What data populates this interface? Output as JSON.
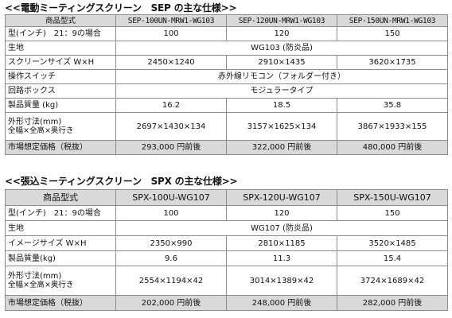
{
  "sep": {
    "title": "<<電動ミーティングスクリーン　SEP の主な仕様>>",
    "rows": {
      "model": {
        "label": "商品型式",
        "values": [
          "SEP-100UN-MRW1-WG103",
          "SEP-120UN-MRW1-WG103",
          "SEP-150UN-MRW1-WG103"
        ]
      },
      "inch": {
        "label": "型(インチ)　21：9の場合",
        "values": [
          "100",
          "120",
          "150"
        ]
      },
      "fabric": {
        "label": "生地",
        "value": "WG103 (防炎品)"
      },
      "screen_size": {
        "label": "スクリーンサイズ W×H",
        "values": [
          "2450×1240",
          "2910×1435",
          "3620×1735"
        ]
      },
      "switch": {
        "label": "操作スイッチ",
        "value": "赤外線リモコン（フォルダー付き）"
      },
      "circuit_box": {
        "label": "回路ボックス",
        "value": "モジュラータイプ"
      },
      "weight": {
        "label": "製品質量 (kg)",
        "values": [
          "16.2",
          "18.5",
          "35.8"
        ]
      },
      "dimensions": {
        "label": "外形寸法(mm)",
        "sublabel": "全幅×全高×奥行き",
        "values": [
          "2697×1430×134",
          "3157×1625×134",
          "3867×1933×155"
        ]
      },
      "price": {
        "label": "市場想定価格（税抜）",
        "values": [
          "293,000 円前後",
          "322,000 円前後",
          "480,000 円前後"
        ]
      }
    }
  },
  "spx": {
    "title": "<<張込ミーティングスクリーン　SPX の主な仕様>>",
    "rows": {
      "model": {
        "label": "商品型式",
        "values": [
          "SPX-100U-WG107",
          "SPX-120U-WG107",
          "SPX-150U-WG107"
        ]
      },
      "inch": {
        "label": "型(インチ)　21：9の場合",
        "values": [
          "100",
          "120",
          "150"
        ]
      },
      "fabric": {
        "label": "生地",
        "value": "WG107 (防炎品)"
      },
      "image_size": {
        "label": "イメージサイズ W×H",
        "values": [
          "2350×990",
          "2810×1185",
          "3520×1485"
        ]
      },
      "weight": {
        "label": "製品質量(kg)",
        "values": [
          "9.6",
          "11.3",
          "15.4"
        ]
      },
      "dimensions": {
        "label": "外形寸法(mm)",
        "sublabel": "全幅×全高×奥行き",
        "values": [
          "2554×1194×42",
          "3014×1389×42",
          "3724×1689×42"
        ]
      },
      "price": {
        "label": "市場想定価格（税抜）",
        "values": [
          "202,000 円前後",
          "248,000 円前後",
          "282,000 円前後"
        ]
      }
    }
  },
  "colors": {
    "header_bg": "#d9d9d9",
    "border": "#8c8c8c"
  }
}
